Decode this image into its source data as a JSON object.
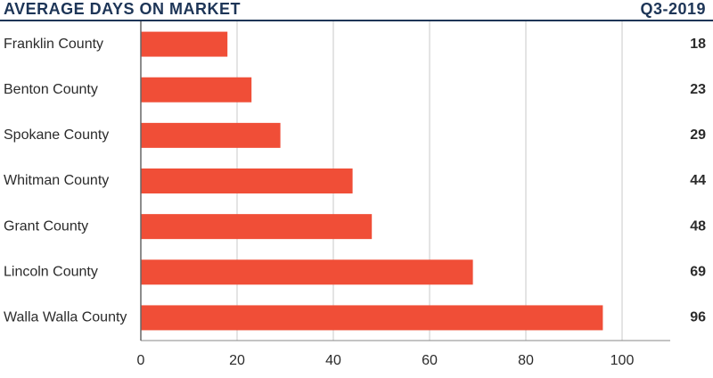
{
  "chart_data": {
    "type": "hbar",
    "title": "AVERAGE DAYS ON MARKET",
    "subtitle": "Q3-2019",
    "categories": [
      "Franklin County",
      "Benton County",
      "Spokane County",
      "Whitman County",
      "Grant County",
      "Lincoln County",
      "Walla Walla County"
    ],
    "values": [
      18,
      23,
      29,
      44,
      48,
      69,
      96
    ],
    "color": "#f04e37",
    "xlim": [
      0,
      110
    ],
    "xticks": [
      0,
      20,
      40,
      60,
      80,
      100
    ],
    "grid": true
  }
}
